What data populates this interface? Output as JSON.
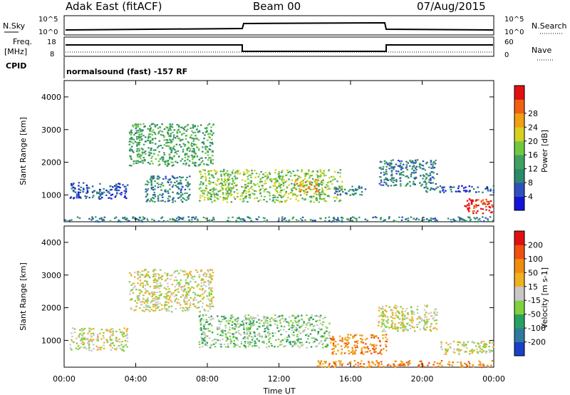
{
  "header": {
    "title": "Adak East (fitACF)",
    "beam": "Beam 00",
    "date": "07/Aug/2015"
  },
  "top_panels": {
    "nsky_label": "N.Sky",
    "nsearch_label": "N.Search",
    "nsky_ticks": [
      "10^5",
      "10^0"
    ],
    "nsearch_ticks": [
      "10^5",
      "10^0"
    ],
    "freq_label": "Freq.",
    "freq_unit": "[MHz]",
    "freq_ticks": [
      "18",
      "8"
    ],
    "nave_label": "Nave",
    "nave_ticks": [
      "60",
      "0"
    ],
    "cpid_label": "CPID",
    "cpid_text": "normalsound (fast) -157 RF"
  },
  "chart_data": [
    {
      "type": "heatmap",
      "name": "power",
      "ylabel": "Slant Range [km]",
      "xlabel": "",
      "yticks": [
        1000,
        2000,
        3000,
        4000
      ],
      "ylim": [
        180,
        4500
      ],
      "xlim": [
        0,
        24
      ],
      "colorbar": {
        "label": "Power [dB]",
        "ticks": [
          "4",
          "8",
          "12",
          "16",
          "20",
          "24",
          "28"
        ],
        "colors": [
          "#1414d8",
          "#3050c0",
          "#2a8a6a",
          "#40a060",
          "#70c840",
          "#d8d020",
          "#f0a010",
          "#f06010",
          "#e01010"
        ]
      },
      "regions": [
        {
          "t0": 3.6,
          "t1": 8.3,
          "r0": 1900,
          "r1": 3200,
          "level": 3
        },
        {
          "t0": 4.5,
          "t1": 7.0,
          "r0": 800,
          "r1": 1600,
          "level": 2
        },
        {
          "t0": 0.3,
          "t1": 3.5,
          "r0": 900,
          "r1": 1400,
          "level": 1
        },
        {
          "t0": 7.5,
          "t1": 15.5,
          "r0": 800,
          "r1": 1800,
          "level": 4
        },
        {
          "t0": 12.8,
          "t1": 14.2,
          "r0": 1100,
          "r1": 1500,
          "level": 6
        },
        {
          "t0": 15.0,
          "t1": 16.8,
          "r0": 1000,
          "r1": 1300,
          "level": 2
        },
        {
          "t0": 17.5,
          "t1": 20.8,
          "r0": 1300,
          "r1": 2100,
          "level": 2
        },
        {
          "t0": 20.0,
          "t1": 24.0,
          "r0": 1100,
          "r1": 1300,
          "level": 1
        },
        {
          "t0": 22.3,
          "t1": 24.0,
          "r0": 450,
          "r1": 900,
          "level": 8
        },
        {
          "t0": 0.0,
          "t1": 24.0,
          "r0": 200,
          "r1": 350,
          "level": 2
        }
      ]
    },
    {
      "type": "heatmap",
      "name": "velocity",
      "ylabel": "Slant Range [km]",
      "xlabel": "Time UT",
      "xticks": [
        "00:00",
        "04:00",
        "08:00",
        "12:00",
        "16:00",
        "20:00",
        "00:00"
      ],
      "yticks": [
        1000,
        2000,
        3000,
        4000
      ],
      "ylim": [
        180,
        4500
      ],
      "xlim": [
        0,
        24
      ],
      "colorbar": {
        "label": "Velocity [m s-1]",
        "ticks": [
          "200",
          "100",
          "50",
          "15",
          "-15",
          "-50",
          "-100",
          "-200"
        ],
        "colors": [
          "#1a40c8",
          "#2f7aa0",
          "#2aa060",
          "#80d040",
          "#c8c8c8",
          "#f0b020",
          "#f08c10",
          "#f05010",
          "#e01010"
        ]
      },
      "regions": [
        {
          "t0": 3.6,
          "t1": 8.3,
          "r0": 1900,
          "r1": 3200,
          "level": 4
        },
        {
          "t0": 0.3,
          "t1": 3.5,
          "r0": 700,
          "r1": 1400,
          "level": 4
        },
        {
          "t0": 7.5,
          "t1": 14.8,
          "r0": 800,
          "r1": 1800,
          "level": 3
        },
        {
          "t0": 14.8,
          "t1": 18.0,
          "r0": 600,
          "r1": 1200,
          "level": 6
        },
        {
          "t0": 17.5,
          "t1": 20.8,
          "r0": 1300,
          "r1": 2100,
          "level": 4
        },
        {
          "t0": 21.0,
          "t1": 24.0,
          "r0": 600,
          "r1": 1000,
          "level": 4
        },
        {
          "t0": 14.0,
          "t1": 24.0,
          "r0": 200,
          "r1": 400,
          "level": 6
        }
      ]
    }
  ]
}
